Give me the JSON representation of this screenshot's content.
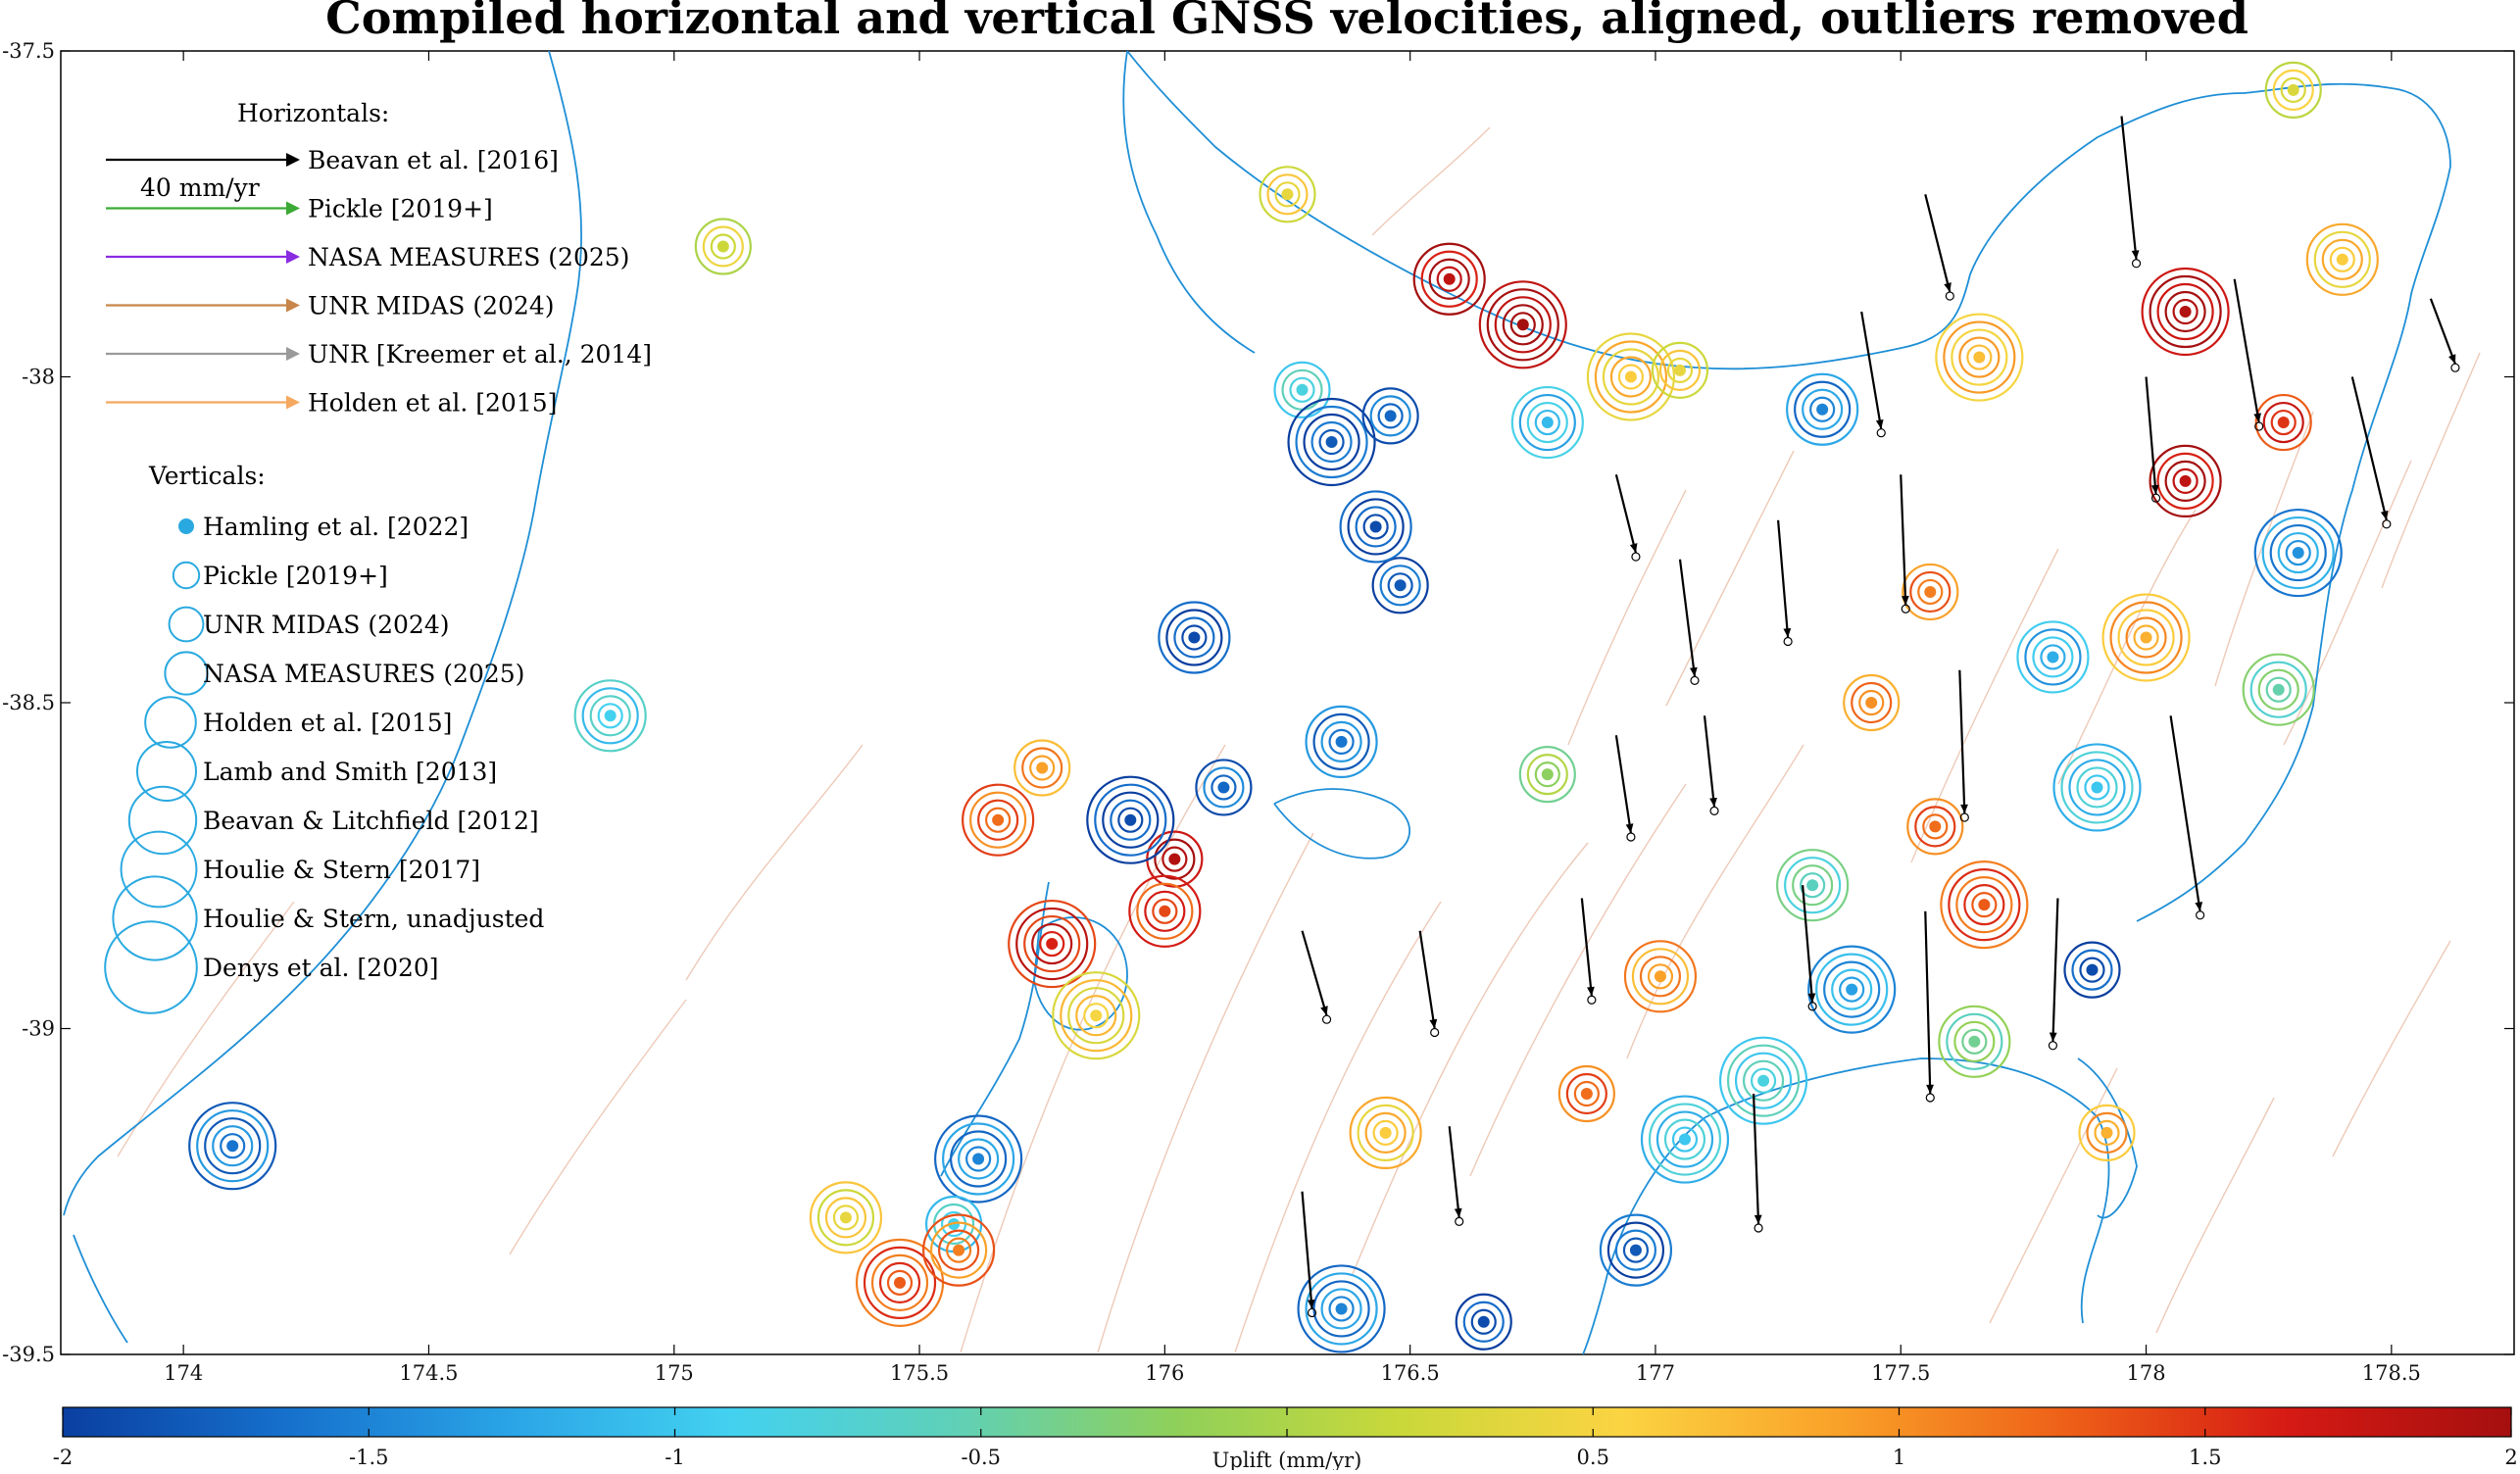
{
  "title": "Compiled horizontal and vertical GNSS velocities, aligned, outliers removed",
  "axes": {
    "lon_range": [
      173.75,
      178.75
    ],
    "lat_range": [
      -39.5,
      -37.5
    ],
    "x_ticks": [
      "174",
      "174.5",
      "175",
      "175.5",
      "176",
      "176.5",
      "177",
      "177.5",
      "178",
      "178.5"
    ],
    "x_tick_values": [
      174,
      174.5,
      175,
      175.5,
      176,
      176.5,
      177,
      177.5,
      178,
      178.5
    ],
    "y_ticks": [
      "-37.5",
      "-38",
      "-38.5",
      "-39",
      "-39.5"
    ],
    "y_tick_values": [
      -37.5,
      -38,
      -38.5,
      -39,
      -39.5
    ]
  },
  "legend": {
    "horizontals_title": "Horizontals:",
    "scale_label": "40 mm/yr",
    "horizontals": [
      {
        "label": "Beavan et al. [2016]",
        "color": "#000000"
      },
      {
        "label": "Pickle [2019+]",
        "color": "#3aaa35"
      },
      {
        "label": "NASA MEASURES (2025)",
        "color": "#8a2be2"
      },
      {
        "label": "UNR MIDAS (2024)",
        "color": "#c8864a"
      },
      {
        "label": "UNR [Kreemer et al., 2014]",
        "color": "#9a9a9a"
      },
      {
        "label": "Holden et al. [2015]",
        "color": "#f5a860"
      }
    ],
    "verticals_title": "Verticals:",
    "verticals": [
      {
        "label": "Hamling et al. [2022]",
        "filled": true
      },
      {
        "label": "Pickle [2019+]"
      },
      {
        "label": "UNR MIDAS (2024)"
      },
      {
        "label": "NASA MEASURES (2025)"
      },
      {
        "label": "Holden et al. [2015]"
      },
      {
        "label": "Lamb and Smith [2013]"
      },
      {
        "label": "Beavan & Litchfield [2012]"
      },
      {
        "label": "Houlie & Stern [2017]"
      },
      {
        "label": "Houlie & Stern, unadjusted"
      },
      {
        "label": "Denys et al. [2020]"
      }
    ],
    "circle_color": "#29a9e0"
  },
  "colorbar": {
    "label": "Uplift (mm/yr)",
    "ticks": [
      "-2",
      "-1.5",
      "-1",
      "-0.5",
      "0",
      "0.5",
      "1",
      "1.5",
      "2"
    ],
    "tick_values": [
      -2,
      -1.5,
      -1,
      -0.5,
      0,
      0.5,
      1,
      1.5,
      2
    ],
    "colors": [
      "#0a3fa0",
      "#1670cc",
      "#2aa4e6",
      "#43d1f0",
      "#5fd0b8",
      "#8fd05a",
      "#c9d83a",
      "#fbd442",
      "#f9a028",
      "#ee6018",
      "#d51a14",
      "#a50f0f"
    ]
  },
  "map_data": {
    "coast_color": "#1f8fd6",
    "fault_color": "#e8b8a0",
    "vertical_stations": [
      {
        "lon": 175.1,
        "lat": -37.8,
        "uplift": 0.2
      },
      {
        "lon": 174.87,
        "lat": -38.52,
        "uplift": -0.9
      },
      {
        "lon": 174.1,
        "lat": -39.18,
        "uplift": -1.6
      },
      {
        "lon": 176.25,
        "lat": -37.72,
        "uplift": 0.4
      },
      {
        "lon": 176.58,
        "lat": -37.85,
        "uplift": 1.8
      },
      {
        "lon": 176.73,
        "lat": -37.92,
        "uplift": 2.0
      },
      {
        "lon": 176.28,
        "lat": -38.02,
        "uplift": -0.8
      },
      {
        "lon": 176.78,
        "lat": -38.07,
        "uplift": -1.1
      },
      {
        "lon": 176.95,
        "lat": -38.0,
        "uplift": 0.6
      },
      {
        "lon": 177.05,
        "lat": -37.99,
        "uplift": 0.4
      },
      {
        "lon": 177.34,
        "lat": -38.05,
        "uplift": -1.5
      },
      {
        "lon": 177.66,
        "lat": -37.97,
        "uplift": 0.7
      },
      {
        "lon": 178.3,
        "lat": -37.56,
        "uplift": 0.3
      },
      {
        "lon": 178.4,
        "lat": -37.82,
        "uplift": 0.6
      },
      {
        "lon": 178.08,
        "lat": -37.9,
        "uplift": 1.9
      },
      {
        "lon": 178.28,
        "lat": -38.07,
        "uplift": 1.5
      },
      {
        "lon": 178.08,
        "lat": -38.16,
        "uplift": 1.8
      },
      {
        "lon": 178.31,
        "lat": -38.27,
        "uplift": -1.4
      },
      {
        "lon": 177.56,
        "lat": -38.33,
        "uplift": 1.1
      },
      {
        "lon": 177.81,
        "lat": -38.43,
        "uplift": -1.2
      },
      {
        "lon": 178.0,
        "lat": -38.4,
        "uplift": 0.8
      },
      {
        "lon": 177.44,
        "lat": -38.5,
        "uplift": 1.0
      },
      {
        "lon": 178.27,
        "lat": -38.48,
        "uplift": -0.5
      },
      {
        "lon": 177.9,
        "lat": -38.63,
        "uplift": -1.0
      },
      {
        "lon": 177.57,
        "lat": -38.69,
        "uplift": 1.2
      },
      {
        "lon": 177.32,
        "lat": -38.78,
        "uplift": -0.6
      },
      {
        "lon": 177.67,
        "lat": -38.81,
        "uplift": 1.3
      },
      {
        "lon": 176.78,
        "lat": -38.61,
        "uplift": -0.2
      },
      {
        "lon": 177.01,
        "lat": -38.92,
        "uplift": 0.9
      },
      {
        "lon": 177.4,
        "lat": -38.94,
        "uplift": -1.3
      },
      {
        "lon": 177.89,
        "lat": -38.91,
        "uplift": -1.9
      },
      {
        "lon": 177.65,
        "lat": -39.02,
        "uplift": -0.4
      },
      {
        "lon": 177.22,
        "lat": -39.08,
        "uplift": -0.8
      },
      {
        "lon": 176.86,
        "lat": -39.1,
        "uplift": 1.2
      },
      {
        "lon": 176.45,
        "lat": -39.16,
        "uplift": 0.6
      },
      {
        "lon": 177.06,
        "lat": -39.17,
        "uplift": -1.0
      },
      {
        "lon": 177.92,
        "lat": -39.16,
        "uplift": 0.8
      },
      {
        "lon": 176.96,
        "lat": -39.34,
        "uplift": -1.8
      },
      {
        "lon": 176.36,
        "lat": -39.43,
        "uplift": -1.5
      },
      {
        "lon": 176.65,
        "lat": -39.45,
        "uplift": -1.9
      },
      {
        "lon": 175.35,
        "lat": -39.29,
        "uplift": 0.4
      },
      {
        "lon": 175.46,
        "lat": -39.39,
        "uplift": 1.3
      },
      {
        "lon": 175.75,
        "lat": -38.6,
        "uplift": 0.9
      },
      {
        "lon": 175.66,
        "lat": -38.68,
        "uplift": 1.2
      },
      {
        "lon": 175.77,
        "lat": -38.87,
        "uplift": 1.6
      },
      {
        "lon": 176.02,
        "lat": -38.74,
        "uplift": 1.9
      },
      {
        "lon": 176.0,
        "lat": -38.82,
        "uplift": 1.4
      },
      {
        "lon": 175.86,
        "lat": -38.98,
        "uplift": 0.5
      },
      {
        "lon": 176.12,
        "lat": -38.63,
        "uplift": -1.7
      },
      {
        "lon": 176.36,
        "lat": -38.56,
        "uplift": -1.6
      },
      {
        "lon": 175.93,
        "lat": -38.68,
        "uplift": -1.9
      },
      {
        "lon": 176.48,
        "lat": -38.32,
        "uplift": -1.8
      },
      {
        "lon": 176.43,
        "lat": -38.23,
        "uplift": -1.9
      },
      {
        "lon": 176.34,
        "lat": -38.1,
        "uplift": -1.8
      },
      {
        "lon": 176.46,
        "lat": -38.06,
        "uplift": -1.7
      },
      {
        "lon": 176.06,
        "lat": -38.4,
        "uplift": -1.9
      },
      {
        "lon": 175.62,
        "lat": -39.2,
        "uplift": -1.5
      },
      {
        "lon": 175.57,
        "lat": -39.3,
        "uplift": -0.9
      },
      {
        "lon": 175.58,
        "lat": -39.34,
        "uplift": 1.1
      }
    ],
    "horizontal_arrows": [
      {
        "lon": 177.5,
        "lat": -38.15,
        "dlon": 0.01,
        "dlat": -0.2
      },
      {
        "lon": 177.62,
        "lat": -38.45,
        "dlon": 0.01,
        "dlat": -0.22
      },
      {
        "lon": 177.25,
        "lat": -38.22,
        "dlon": 0.02,
        "dlat": -0.18
      },
      {
        "lon": 177.05,
        "lat": -38.28,
        "dlon": 0.03,
        "dlat": -0.18
      },
      {
        "lon": 176.92,
        "lat": -38.55,
        "dlon": 0.03,
        "dlat": -0.15
      },
      {
        "lon": 177.1,
        "lat": -38.52,
        "dlon": 0.02,
        "dlat": -0.14
      },
      {
        "lon": 176.85,
        "lat": -38.8,
        "dlon": 0.02,
        "dlat": -0.15
      },
      {
        "lon": 176.52,
        "lat": -38.85,
        "dlon": 0.03,
        "dlat": -0.15
      },
      {
        "lon": 176.28,
        "lat": -38.85,
        "dlon": 0.05,
        "dlat": -0.13
      },
      {
        "lon": 176.58,
        "lat": -39.15,
        "dlon": 0.02,
        "dlat": -0.14
      },
      {
        "lon": 176.28,
        "lat": -39.25,
        "dlon": 0.02,
        "dlat": -0.18
      },
      {
        "lon": 177.55,
        "lat": -38.82,
        "dlon": 0.01,
        "dlat": -0.28
      },
      {
        "lon": 177.82,
        "lat": -38.8,
        "dlon": -0.01,
        "dlat": -0.22
      },
      {
        "lon": 178.05,
        "lat": -38.52,
        "dlon": 0.06,
        "dlat": -0.3
      },
      {
        "lon": 177.95,
        "lat": -37.6,
        "dlon": 0.03,
        "dlat": -0.22
      },
      {
        "lon": 178.18,
        "lat": -37.85,
        "dlon": 0.05,
        "dlat": -0.22
      },
      {
        "lon": 178.58,
        "lat": -37.88,
        "dlon": 0.05,
        "dlat": -0.1
      },
      {
        "lon": 178.42,
        "lat": -38.0,
        "dlon": 0.07,
        "dlat": -0.22
      },
      {
        "lon": 177.42,
        "lat": -37.9,
        "dlon": 0.04,
        "dlat": -0.18
      },
      {
        "lon": 177.55,
        "lat": -37.72,
        "dlon": 0.05,
        "dlat": -0.15
      },
      {
        "lon": 178.0,
        "lat": -38.0,
        "dlon": 0.02,
        "dlat": -0.18
      },
      {
        "lon": 176.92,
        "lat": -38.15,
        "dlon": 0.04,
        "dlat": -0.12
      },
      {
        "lon": 177.3,
        "lat": -38.78,
        "dlon": 0.02,
        "dlat": -0.18
      },
      {
        "lon": 177.2,
        "lat": -39.1,
        "dlon": 0.01,
        "dlat": -0.2
      }
    ]
  }
}
